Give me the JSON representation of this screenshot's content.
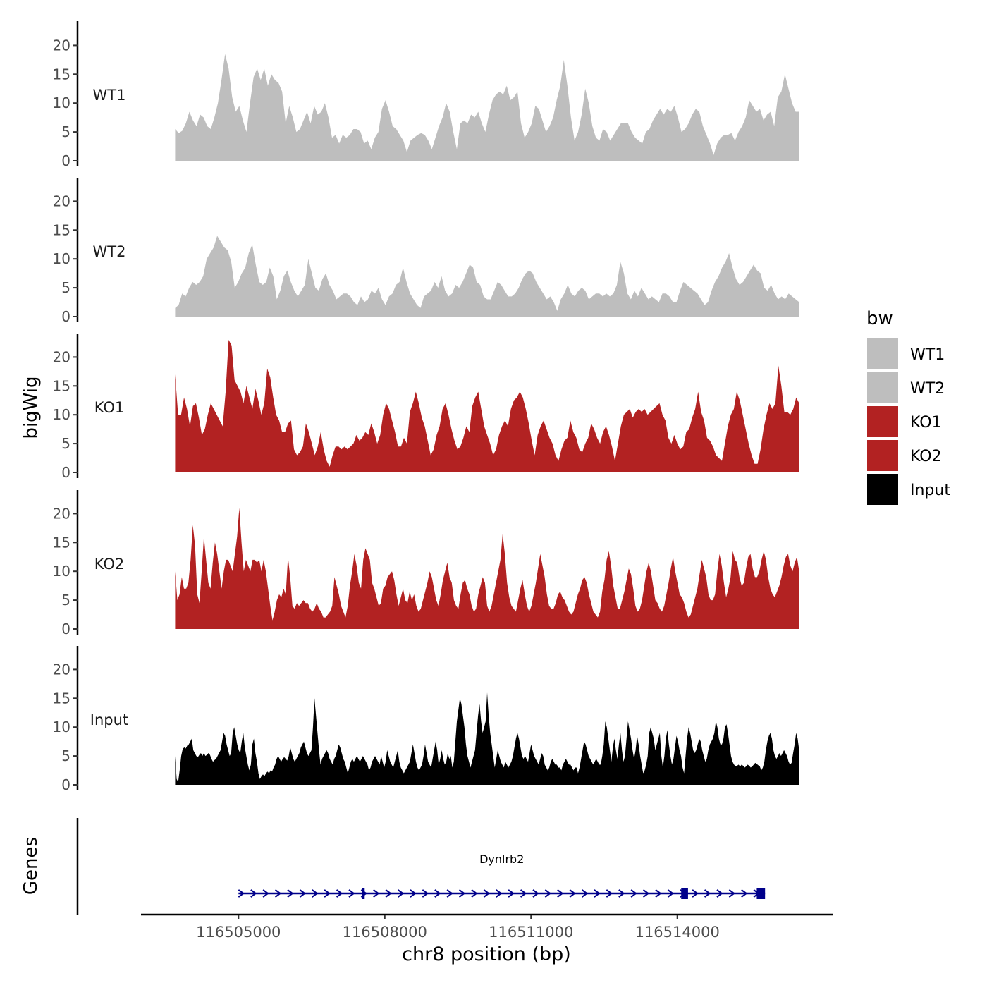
{
  "chart_data": {
    "type": "area",
    "y_axis_title": "bigWig",
    "genes_axis_title": "Genes",
    "x_axis_title": "chr8 position (bp)",
    "xlim": [
      116503000,
      116517200
    ],
    "data_range": [
      116503700,
      116516500
    ],
    "x_ticks": [
      116505000,
      116508000,
      116511000,
      116514000
    ],
    "x_tick_labels": [
      "116505000",
      "116508000",
      "116511000",
      "116514000"
    ],
    "ylim": [
      0,
      24
    ],
    "y_ticks": [
      0,
      5,
      10,
      15,
      20
    ],
    "y_tick_labels": [
      "0",
      "5",
      "10",
      "15",
      "20"
    ],
    "legend": {
      "title": "bw",
      "position": "right",
      "entries": [
        {
          "label": "WT1",
          "color": "#BEBEBE"
        },
        {
          "label": "WT2",
          "color": "#BEBEBE"
        },
        {
          "label": "KO1",
          "color": "#B22222"
        },
        {
          "label": "KO2",
          "color": "#B22222"
        },
        {
          "label": "Input",
          "color": "#000000"
        }
      ]
    },
    "series": [
      {
        "name": "WT1",
        "color": "#BEBEBE",
        "values": [
          5.5,
          4.8,
          5.2,
          6.5,
          8.5,
          7,
          6,
          8,
          7.5,
          6,
          5.5,
          7.5,
          10,
          14,
          18.5,
          16,
          11,
          8.5,
          9.5,
          7,
          5,
          10,
          14.5,
          16,
          14,
          16,
          13,
          15,
          14,
          13.5,
          12,
          6.5,
          9.5,
          7.5,
          5,
          5.5,
          7,
          8.5,
          6.5,
          9.5,
          8,
          8.5,
          10,
          7.5,
          4,
          4.5,
          3,
          4.5,
          4,
          4.5,
          5.5,
          5.5,
          5,
          3,
          3.5,
          2,
          4,
          5,
          9,
          10.5,
          8.5,
          6,
          5.5,
          4.5,
          3.5,
          1.5,
          3.5,
          4,
          4.5,
          4.8,
          4.5,
          3.5,
          2,
          4,
          6,
          7.5,
          10,
          8.5,
          5,
          2,
          6.5,
          7,
          6.5,
          8,
          7.5,
          8.5,
          6.5,
          5,
          8,
          10.5,
          11.5,
          12,
          11.5,
          13,
          10.5,
          11,
          12,
          6.5,
          4,
          5,
          6.5,
          9.5,
          9,
          7,
          5,
          6,
          7.5,
          10.5,
          13,
          17.5,
          13,
          7.5,
          3.5,
          5,
          8,
          12.5,
          10,
          6,
          4,
          3.5,
          5.5,
          5,
          3.5,
          4.5,
          5.5,
          6.5,
          6.5,
          6.5,
          5,
          4,
          3.5,
          3,
          5,
          5.5,
          7,
          8,
          9,
          8,
          9,
          8.5,
          9.5,
          7.5,
          5,
          5.5,
          6.5,
          8,
          9,
          8.5,
          6,
          4.5,
          3,
          1,
          3,
          4,
          4.5,
          4.5,
          4.8,
          3.5,
          5,
          6,
          7.5,
          10.5,
          9.5,
          8.5,
          9,
          7,
          8,
          8.5,
          6,
          11,
          12,
          15,
          12.5,
          10,
          8.5,
          8.5
        ]
      },
      {
        "name": "WT2",
        "color": "#BEBEBE",
        "values": [
          1.5,
          2,
          4,
          3.5,
          5,
          6,
          5.5,
          6,
          7,
          10,
          11,
          12,
          14,
          13,
          12,
          11.5,
          9.5,
          5,
          6,
          7.5,
          8.5,
          11,
          12.5,
          9,
          6,
          5.5,
          6,
          8.5,
          7,
          3,
          4.5,
          7,
          8,
          6,
          4.5,
          3.5,
          4.5,
          5.5,
          10,
          7.5,
          5,
          4.5,
          6.5,
          7.5,
          5.5,
          4.5,
          3,
          3.5,
          4,
          4,
          3.5,
          2.5,
          2,
          3.5,
          2.5,
          3,
          4.5,
          4,
          5,
          3,
          2,
          3.5,
          4,
          5.5,
          6,
          8.5,
          6,
          4,
          3,
          2,
          1.5,
          3.5,
          4,
          4.5,
          6,
          5,
          7,
          4.5,
          3.5,
          4,
          5.5,
          5,
          6,
          7.5,
          9,
          8.5,
          6,
          5.5,
          3.5,
          3,
          3,
          4.5,
          6,
          5.5,
          4.5,
          3.5,
          3.5,
          4,
          5,
          6.5,
          7.5,
          8,
          7.5,
          6,
          5,
          4,
          3,
          3.5,
          2.5,
          1,
          3,
          4,
          5.5,
          4,
          3.5,
          4.5,
          5,
          4.5,
          3,
          3.5,
          4,
          4,
          3.5,
          4,
          3.5,
          4,
          5.5,
          9.5,
          7.5,
          4,
          3,
          4.5,
          3.5,
          5,
          4,
          3,
          3.5,
          3,
          2.5,
          4,
          4,
          3.5,
          2.5,
          2.5,
          4.5,
          6,
          5.5,
          5,
          4.5,
          4,
          3,
          2,
          2.5,
          4.5,
          6,
          7,
          8.5,
          9.5,
          11,
          8.5,
          6.5,
          5.5,
          6,
          7,
          8,
          9,
          8,
          7.5,
          5,
          4.5,
          5.5,
          4,
          3,
          3.5,
          3,
          4,
          3.5,
          3,
          2.5
        ]
      },
      {
        "name": "KO1",
        "color": "#B22222",
        "values": [
          17,
          10,
          10,
          13,
          11,
          8,
          11.5,
          12,
          9.5,
          6.5,
          7.5,
          10,
          12,
          11,
          10,
          9,
          8,
          14,
          23,
          22,
          16,
          15,
          14,
          12,
          15,
          13,
          11,
          14.5,
          12.5,
          10,
          12,
          18,
          16.5,
          13,
          10,
          9,
          7,
          7,
          8.5,
          9,
          4,
          3,
          3.5,
          4.5,
          8.5,
          7,
          5,
          3,
          4.5,
          7,
          4,
          2,
          1,
          3,
          4.5,
          4.5,
          4,
          4.5,
          4,
          4.5,
          5,
          6.5,
          5.5,
          6,
          7,
          6.5,
          8.5,
          7,
          5,
          6.5,
          10,
          12,
          11,
          9,
          7,
          4.5,
          4.5,
          6,
          5,
          10.5,
          12,
          14,
          12,
          9.5,
          8,
          5.5,
          3,
          4,
          6.5,
          8,
          11,
          12,
          10,
          7.5,
          5.5,
          4,
          4.5,
          6,
          8,
          7,
          11.5,
          13,
          14,
          11,
          8,
          6.5,
          5,
          3,
          4,
          6.5,
          8,
          9,
          8,
          11,
          12.5,
          13,
          14,
          13,
          11,
          8.5,
          5.5,
          3,
          6.5,
          8,
          9,
          7.5,
          6,
          5,
          3,
          2,
          4,
          5.5,
          6,
          9,
          7,
          6,
          4,
          3.5,
          5,
          6,
          8.5,
          7.5,
          6,
          5,
          7,
          8,
          6.5,
          4.5,
          2,
          5,
          8,
          10,
          10.5,
          11,
          9.5,
          10.5,
          11,
          10.5,
          11,
          10,
          10.5,
          11,
          11.5,
          12,
          10,
          9,
          6,
          5,
          6.5,
          5,
          4,
          4.5,
          7,
          7.5,
          9.5,
          11,
          14,
          10.5,
          9,
          6,
          5.5,
          4.5,
          3,
          2.5,
          2,
          5,
          8,
          10,
          11,
          14,
          12.5,
          10,
          7.5,
          5,
          3,
          1.5,
          1.5,
          4,
          7.5,
          10,
          12,
          11,
          12,
          18.5,
          15,
          10.5,
          10.5,
          10,
          11,
          13,
          12
        ]
      },
      {
        "name": "KO2",
        "color": "#B22222",
        "values": [
          10,
          5,
          6,
          9,
          7,
          7,
          8,
          12,
          18,
          14.5,
          6,
          4.5,
          10,
          16,
          12,
          8,
          7,
          11.5,
          15,
          13,
          10,
          7,
          10,
          12,
          12,
          11,
          10,
          13,
          16,
          21,
          15,
          10,
          12,
          11,
          10,
          12,
          12,
          11.5,
          12,
          10,
          12,
          10,
          7,
          4,
          1.5,
          3,
          5,
          6,
          5.5,
          7,
          6,
          12.5,
          9,
          4,
          3.5,
          4.5,
          4,
          4.5,
          5,
          4.5,
          4.5,
          3.5,
          3,
          3.5,
          4.5,
          3.5,
          3,
          2,
          2,
          2.5,
          3,
          4,
          9,
          7.5,
          6,
          4,
          3,
          2,
          4,
          7.5,
          10,
          13,
          11,
          8,
          7,
          12,
          14,
          13,
          12,
          8,
          7,
          5.5,
          4,
          4.5,
          7,
          7.5,
          9,
          9.5,
          10,
          8.5,
          6,
          4,
          5.5,
          7,
          5,
          4.5,
          6.5,
          5,
          6,
          4,
          3,
          3.5,
          5,
          6.5,
          8,
          10,
          9,
          7,
          5,
          4,
          6,
          8.5,
          10,
          11.5,
          9,
          8,
          5,
          4,
          3.5,
          6,
          8,
          8.5,
          7,
          6,
          4,
          3,
          3.5,
          6,
          7.5,
          9,
          8,
          4,
          3,
          4,
          6,
          8,
          10,
          12,
          16.5,
          13,
          8,
          5.5,
          4,
          3.5,
          3,
          5,
          7,
          8.5,
          6,
          4,
          3,
          4,
          6,
          8,
          10.5,
          13,
          11,
          9,
          6,
          4,
          3.5,
          3.5,
          4.5,
          6,
          6.5,
          5.5,
          5,
          4,
          3,
          2.5,
          3,
          4.5,
          6,
          7,
          8.5,
          9,
          8,
          6,
          4.5,
          3,
          2.5,
          2,
          3,
          6.5,
          8.5,
          12,
          13.5,
          11,
          7.5,
          5.5,
          3.5,
          3.5,
          5,
          6.5,
          8.5,
          10.5,
          9.5,
          7,
          4,
          3,
          3.5,
          5,
          7.5,
          10,
          11.5,
          10,
          7.5,
          5,
          4.5,
          3.5,
          3,
          4,
          6,
          8,
          10.5,
          12.5,
          10,
          8,
          6,
          5.5,
          4.5,
          3,
          2,
          2.5,
          4,
          5.5,
          7,
          9.5,
          12,
          10.5,
          9,
          6,
          5,
          5,
          6,
          10,
          13,
          11,
          8,
          5.5,
          7,
          9,
          13.5,
          12,
          11.5,
          9,
          7.5,
          8,
          10.5,
          12.5,
          13,
          10.5,
          9,
          9,
          10,
          12,
          13.5,
          12,
          9,
          7,
          6,
          5.5,
          6.5,
          7.5,
          9,
          11,
          12.5,
          13,
          11,
          10,
          11.5,
          12.5,
          10
        ]
      },
      {
        "name": "Input",
        "color": "#000000",
        "values": [
          5,
          1,
          0.5,
          2.5,
          5,
          6.2,
          6.5,
          6.3,
          6.8,
          7,
          7.5,
          8,
          6,
          5.5,
          5,
          4.8,
          5.2,
          5.5,
          5,
          5.5,
          5,
          5.2,
          5.5,
          5.2,
          4.5,
          4,
          4.3,
          4.5,
          5,
          5.5,
          6,
          7.5,
          9,
          8.5,
          7,
          6,
          5,
          5.5,
          9,
          10,
          8.5,
          7,
          6,
          5.5,
          7.5,
          9,
          6.5,
          5,
          3.5,
          2.5,
          3.5,
          7,
          8,
          5.5,
          4,
          2,
          1,
          1.5,
          1.8,
          1.5,
          2,
          2.3,
          2,
          2.5,
          2.3,
          3,
          3.5,
          4.5,
          5,
          4.5,
          4,
          4.5,
          4.8,
          4.5,
          4.2,
          5,
          6.5,
          5.5,
          4.5,
          4,
          4.5,
          5,
          5.5,
          6.5,
          7,
          7.5,
          6.5,
          5.5,
          5,
          5.5,
          6,
          10,
          15,
          12,
          9,
          6,
          3.5,
          4.5,
          5,
          5.5,
          6,
          5.5,
          4.5,
          4,
          3.5,
          4.5,
          5,
          6,
          7,
          6.5,
          5.5,
          4.5,
          4,
          3,
          2,
          3,
          4,
          4.5,
          4,
          4.5,
          5,
          4.5,
          4,
          4.5,
          5,
          4.5,
          4,
          3.5,
          2.5,
          3,
          4,
          4.5,
          5,
          4.5,
          4,
          3.5,
          5,
          4,
          3,
          4,
          6,
          5,
          4,
          3.5,
          3,
          4,
          5,
          6,
          4,
          3,
          2.5,
          2,
          2.5,
          3,
          3.5,
          4,
          5.5,
          7,
          5.5,
          4,
          3,
          2.5,
          3,
          3.5,
          5,
          7,
          5.5,
          4,
          3.5,
          3,
          4.5,
          6,
          7.5,
          6,
          3.5,
          4.5,
          6,
          4.5,
          3.5,
          4,
          5.5,
          4.5,
          5,
          3,
          4,
          7.5,
          11,
          13,
          15,
          14,
          12,
          10,
          7,
          5,
          4,
          3,
          4,
          5,
          6,
          9,
          12,
          14,
          11,
          9,
          10,
          11,
          16,
          12,
          9,
          7,
          5,
          3,
          4.5,
          6,
          5,
          4,
          3.5,
          3,
          4,
          3.5,
          3,
          3.5,
          4,
          5,
          6.5,
          8,
          9,
          8,
          6.5,
          5,
          4.5,
          5,
          4.5,
          4,
          5.5,
          7,
          6,
          5,
          4.5,
          4,
          3.5,
          4.5,
          5.5,
          5,
          3.5,
          3,
          2.5,
          3,
          4,
          4.5,
          4,
          3.5,
          3.5,
          3,
          3,
          2.5,
          3.5,
          4,
          4.5,
          4,
          3.5,
          3.5,
          3,
          2.5,
          3,
          3,
          2,
          3,
          4.5,
          6,
          7.5,
          7,
          6,
          5,
          4.5,
          4,
          3.5,
          4,
          4.5,
          4,
          3.5,
          3.5,
          5,
          7,
          11,
          10,
          8,
          6,
          4,
          6.5,
          8,
          6,
          4.5,
          7,
          9,
          6,
          4,
          5,
          8,
          11,
          9.5,
          8,
          6,
          4.5,
          6,
          8.5,
          7,
          5,
          3.5,
          2,
          2.5,
          3.5,
          5,
          9,
          10,
          9,
          8,
          6,
          7,
          8,
          9,
          5,
          3,
          5,
          8,
          9.5,
          7,
          5,
          3.5,
          4.5,
          6.5,
          8.5,
          7.5,
          6,
          5,
          3,
          2,
          5,
          8,
          10,
          9,
          7.5,
          6,
          5.5,
          6,
          7,
          8,
          7.5,
          6,
          5,
          4,
          4.5,
          6,
          7,
          7.5,
          8,
          9,
          11,
          10,
          8,
          7,
          7,
          8,
          10,
          10.5,
          9,
          7,
          5,
          4,
          3.5,
          3.2,
          3.3,
          3.5,
          3.2,
          3.5,
          3.3,
          3,
          3.2,
          3.5,
          3.3,
          3,
          3.2,
          3.5,
          3.8,
          3.6,
          3.4,
          3.2,
          2.5,
          3,
          4,
          6,
          7.5,
          8.5,
          9,
          8,
          6,
          5,
          4.5,
          5,
          5.5,
          5,
          5.5,
          6,
          5.5,
          5,
          4,
          3.5,
          3.8,
          5.5,
          7,
          9,
          8,
          6
        ]
      }
    ],
    "gene": {
      "name": "Dynlrb2",
      "start": 116505000,
      "end": 116515800,
      "strand": "+",
      "color": "#00008B",
      "exons": [
        {
          "start": 116507530,
          "end": 116507580
        },
        {
          "start": 116514080,
          "end": 116514220
        },
        {
          "start": 116515630,
          "end": 116515800
        }
      ]
    }
  }
}
